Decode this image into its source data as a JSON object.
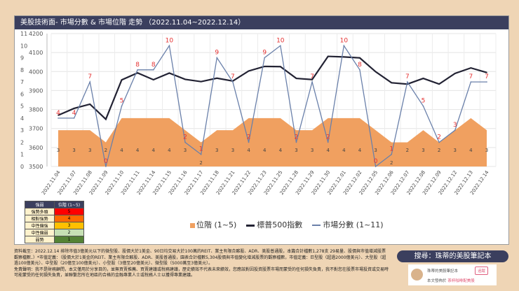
{
  "title": "美股技術面- 市場分數 & 市場位階 走勢 （2022.11.04~2022.12.14）",
  "chart_data": {
    "type": "line",
    "categories": [
      "2022.11.04",
      "2022.11.07",
      "2022.11.08",
      "2022.11.09",
      "2022.11.10",
      "2022.11.11",
      "2022.11.14",
      "2022.11.15",
      "2022.11.16",
      "2022.11.17",
      "2022.11.18",
      "2022.11.21",
      "2022.11.22",
      "2022.11.23",
      "2022.11.25",
      "2022.11.28",
      "2022.11.29",
      "2022.11.30",
      "2022.12.01",
      "2022.12.02",
      "2022.12.05",
      "2022.12.06",
      "2022.12.07",
      "2022.12.08",
      "2022.12.09",
      "2022.12.12",
      "2022.12.13",
      "2022.12.14"
    ],
    "series": [
      {
        "name": "位階 (1~5)",
        "type": "area",
        "axis": "left",
        "color": "#f0a060",
        "values": [
          3,
          3,
          3,
          2,
          4,
          4,
          4,
          4,
          3,
          2,
          3,
          3,
          4,
          4,
          4,
          3,
          3,
          4,
          4,
          4,
          3,
          2,
          2,
          3,
          2,
          3,
          4,
          3
        ]
      },
      {
        "name": "標普500指數",
        "type": "line",
        "axis": "right",
        "color": "#222233",
        "values": [
          3770,
          3806,
          3828,
          3749,
          3956,
          3993,
          3957,
          3992,
          3959,
          3947,
          3965,
          3950,
          4003,
          4027,
          4026,
          3964,
          3958,
          4080,
          4077,
          4072,
          3999,
          3941,
          3934,
          3964,
          3934,
          3990,
          4019,
          3995
        ]
      },
      {
        "name": "市場分數 (1~11)",
        "type": "line",
        "axis": "left",
        "color": "#6a80aa",
        "values": [
          4,
          4,
          7,
          0,
          5,
          8,
          8,
          10,
          2,
          1,
          9,
          7,
          2,
          9,
          10,
          2,
          7,
          2,
          10,
          8,
          0,
          1,
          7,
          5,
          2,
          3,
          7,
          7
        ]
      }
    ],
    "y_left": {
      "range": [
        0,
        11
      ],
      "ticks": [
        "0",
        "1",
        "2",
        "3",
        "4",
        "5",
        "6",
        "7",
        "8",
        "9",
        "10",
        "11"
      ]
    },
    "y_right": {
      "range": [
        3500,
        4200
      ],
      "ticks": [
        "3500",
        "3600",
        "3700",
        "3800",
        "3900",
        "4000",
        "4100",
        "4200"
      ]
    },
    "grid": true,
    "legend": "bottom"
  },
  "level_table": {
    "headers": [
      "強弱",
      "位階 (1~5)"
    ],
    "rows": [
      {
        "label": "強勢多頭",
        "value": "5",
        "color": "#ff0000"
      },
      {
        "label": "相對強勢",
        "value": "4",
        "color": "#ff6a00"
      },
      {
        "label": "中性偏強",
        "value": "3",
        "color": "#ffc000"
      },
      {
        "label": "中性偏弱",
        "value": "2",
        "color": "#c6e0b4"
      },
      {
        "label": "弱勢",
        "value": "1",
        "color": "#548235"
      }
    ]
  },
  "notes": {
    "line1": "資料截至：2022.12.14 排除市值3億美元以下的微型股、股價大於1美金、90日均交易大於100萬的REIT、業主有限合夥股、ADR、美股普通股，本篇合計檔數1,278支 29易量、股價與市值增減股票觀察檔數．）*市值定義：（股價大於1美金的REIT、業主有限合夥股、ADR、美股普通股，園表合計檔數5,304股價與市值變化增減股票的觀察檔數，市值定義：巨型股（超過2000億美元）、大型股（超過100億美元）、中型股（20億至100億美元）、小型股（3億至20億美元）、微型股（5000萬至3億美元）。",
    "line2": "免責聲明：我不是財務顧問，本文僅用於分享目的，並無買賣推薦、買賣建議或稅務建議，歷史績效不代表未來績效，您應該對因投資股票市場而蒙受的任何損失負責，我不對您在股票市場投資或交易時可能蒙受的任何損失負責，並聯繫您所在地區的合格的金融專業人士或稅務人士以獲得專業建議。"
  },
  "search_banner": "搜尋：珠蒂的美股筆記本",
  "card": {
    "name": "珠蒂的美股筆記本",
    "follow": "追蹤",
    "published_prefix": "本文發佈於",
    "published_link": "茶杯咖啡配美股"
  }
}
